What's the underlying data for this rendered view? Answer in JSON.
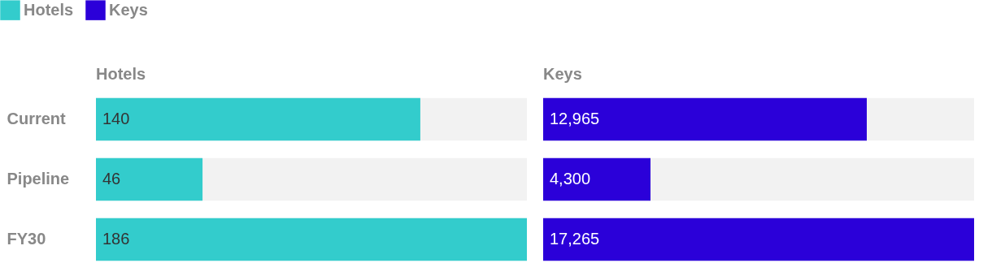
{
  "chart_data": [
    {
      "type": "bar",
      "orientation": "horizontal",
      "title": "Hotels",
      "categories": [
        "Current",
        "Pipeline",
        "FY30"
      ],
      "series": [
        {
          "name": "Hotels",
          "color": "#33cccc",
          "values": [
            140,
            46,
            186
          ]
        }
      ],
      "data_labels": true,
      "legend": "top left",
      "tick_labels": "y"
    },
    {
      "type": "bar",
      "orientation": "horizontal",
      "title": "Keys",
      "categories": [
        null,
        null,
        null
      ],
      "series": [
        {
          "name": "Keys",
          "color": "#2b00d9",
          "values": [
            12965,
            4300,
            17265
          ],
          "value_labels": [
            "12,965",
            "4,300",
            "17,265"
          ]
        }
      ],
      "legend": "top left",
      "tick_labels": false
    }
  ]
}
